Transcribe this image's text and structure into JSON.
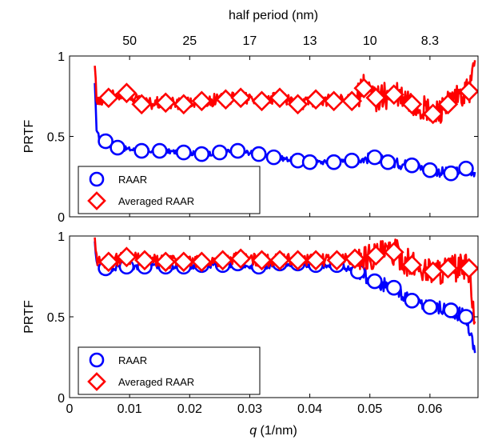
{
  "figure": {
    "top_axis_label": "half period (nm)",
    "x_label_var": "q",
    "x_label_unit": " (1/nm)"
  },
  "chart_data": [
    {
      "type": "line",
      "panel": "top",
      "ylabel": "PRTF",
      "xlim": [
        0,
        0.068
      ],
      "ylim": [
        0,
        1
      ],
      "x_ticks": [
        0,
        0.01,
        0.02,
        0.03,
        0.04,
        0.05,
        0.06
      ],
      "x_tick_labels_shown": false,
      "y_ticks": [
        0,
        0.5,
        1
      ],
      "top_ticks": [
        {
          "q": 0.01,
          "label": "50"
        },
        {
          "q": 0.02,
          "label": "25"
        },
        {
          "q": 0.03,
          "label": "17"
        },
        {
          "q": 0.04,
          "label": "13"
        },
        {
          "q": 0.05,
          "label": "10"
        },
        {
          "q": 0.06,
          "label": "8.3"
        }
      ],
      "legend_position": "bottom-left",
      "series": [
        {
          "name": "RAAR",
          "color": "#0000ff",
          "marker": "circle",
          "x": [
            0.0042,
            0.0045,
            0.005,
            0.006,
            0.008,
            0.012,
            0.015,
            0.019,
            0.022,
            0.025,
            0.028,
            0.0315,
            0.034,
            0.038,
            0.04,
            0.044,
            0.047,
            0.0508,
            0.053,
            0.057,
            0.06,
            0.0635,
            0.066,
            0.0675
          ],
          "y": [
            0.82,
            0.55,
            0.48,
            0.47,
            0.43,
            0.41,
            0.41,
            0.4,
            0.39,
            0.4,
            0.41,
            0.39,
            0.37,
            0.35,
            0.34,
            0.34,
            0.35,
            0.37,
            0.34,
            0.32,
            0.29,
            0.27,
            0.3,
            0.28
          ],
          "noise": 0.015
        },
        {
          "name": "Averaged RAAR",
          "color": "#ff0000",
          "marker": "diamond",
          "x": [
            0.0042,
            0.0045,
            0.005,
            0.0065,
            0.0095,
            0.012,
            0.016,
            0.019,
            0.022,
            0.026,
            0.0285,
            0.032,
            0.035,
            0.038,
            0.041,
            0.044,
            0.047,
            0.049,
            0.051,
            0.054,
            0.057,
            0.0605,
            0.063,
            0.0665,
            0.0675
          ],
          "y": [
            0.95,
            0.72,
            0.7,
            0.74,
            0.77,
            0.7,
            0.71,
            0.7,
            0.72,
            0.73,
            0.74,
            0.72,
            0.74,
            0.7,
            0.73,
            0.72,
            0.72,
            0.8,
            0.74,
            0.76,
            0.7,
            0.64,
            0.7,
            0.78,
            0.95
          ],
          "noise": 0.04
        }
      ]
    },
    {
      "type": "line",
      "panel": "bottom",
      "ylabel": "PRTF",
      "xlabel": "q (1/nm)",
      "xlim": [
        0,
        0.068
      ],
      "ylim": [
        0,
        1
      ],
      "x_ticks": [
        0,
        0.01,
        0.02,
        0.03,
        0.04,
        0.05,
        0.06
      ],
      "x_tick_labels": [
        "0",
        "0.01",
        "0.02",
        "0.03",
        "0.04",
        "0.05",
        "0.06"
      ],
      "y_ticks": [
        0,
        0.5,
        1
      ],
      "legend_position": "bottom-left",
      "series": [
        {
          "name": "RAAR",
          "color": "#0000ff",
          "marker": "circle",
          "x": [
            0.0042,
            0.0045,
            0.005,
            0.006,
            0.0095,
            0.0125,
            0.016,
            0.019,
            0.022,
            0.0255,
            0.028,
            0.0315,
            0.035,
            0.038,
            0.041,
            0.0445,
            0.048,
            0.0508,
            0.054,
            0.057,
            0.06,
            0.0635,
            0.066,
            0.0675
          ],
          "y": [
            0.95,
            0.85,
            0.8,
            0.8,
            0.81,
            0.81,
            0.81,
            0.81,
            0.82,
            0.82,
            0.83,
            0.81,
            0.83,
            0.83,
            0.82,
            0.82,
            0.78,
            0.72,
            0.68,
            0.6,
            0.56,
            0.54,
            0.5,
            0.28
          ],
          "noise": 0.02
        },
        {
          "name": "Averaged RAAR",
          "color": "#ff0000",
          "marker": "diamond",
          "x": [
            0.0042,
            0.0045,
            0.005,
            0.0065,
            0.0095,
            0.0125,
            0.016,
            0.019,
            0.022,
            0.0255,
            0.0285,
            0.032,
            0.035,
            0.038,
            0.041,
            0.0445,
            0.0475,
            0.051,
            0.054,
            0.057,
            0.0605,
            0.063,
            0.0665,
            0.0675
          ],
          "y": [
            1.0,
            0.86,
            0.84,
            0.84,
            0.87,
            0.85,
            0.84,
            0.84,
            0.84,
            0.85,
            0.86,
            0.85,
            0.85,
            0.85,
            0.85,
            0.85,
            0.86,
            0.88,
            0.9,
            0.82,
            0.78,
            0.8,
            0.8,
            0.45
          ],
          "noise": 0.04
        }
      ]
    }
  ]
}
